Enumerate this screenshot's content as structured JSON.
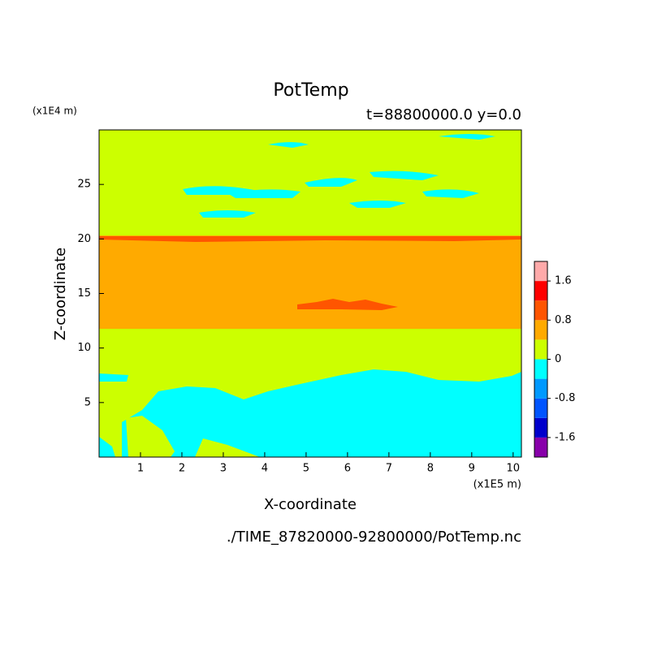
{
  "chart_data": {
    "type": "contour",
    "title": "PotTemp",
    "subtitle": "t=88800000.0 y=0.0",
    "x_label": "X-coordinate",
    "y_label": "Z-coordinate",
    "x_unit": "(x1E5 m)",
    "y_unit": "(x1E4 m)",
    "footer": "./TIME_87820000-92800000/PotTemp.nc",
    "xlim": [
      0,
      10.2
    ],
    "xticks": [
      1,
      2,
      3,
      4,
      5,
      6,
      7,
      8,
      9,
      10
    ],
    "ylim": [
      0,
      30
    ],
    "yticks": [
      5,
      10,
      15,
      20,
      25
    ],
    "colorbar": {
      "clim": [
        -2,
        2
      ],
      "ticks": [
        -1.6,
        -0.8,
        0,
        0.8,
        1.6
      ],
      "colors": [
        "#8800aa",
        "#0000cc",
        "#0055ff",
        "#0099ff",
        "#00ffff",
        "#ccff00",
        "#ffaa00",
        "#ff5500",
        "#ff0000",
        "#ffaaaa"
      ]
    }
  }
}
